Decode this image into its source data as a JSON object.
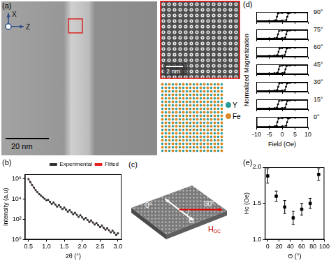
{
  "chart_data": [
    {
      "panel_label": "(b)",
      "type": "line",
      "x_label": "2θ (°)",
      "y_label": "Intensity (a.u)",
      "log": "y",
      "grid": false,
      "legend": "top",
      "xlim": [
        0.4,
        3.1
      ],
      "xticks": [
        0.5,
        {
          "value": 1,
          "label": "1.0"
        },
        1.5,
        {
          "value": 2,
          "label": "2.0"
        },
        2.5,
        {
          "value": 3,
          "label": "3.0"
        }
      ],
      "ylim": [
        1,
        3000000
      ],
      "yticks": [
        {
          "value": 1,
          "label": "10⁰"
        },
        {
          "value": 100,
          "label": "10²"
        },
        {
          "value": 10000,
          "label": "10⁴"
        },
        {
          "value": 1000000,
          "label": "10⁶"
        }
      ],
      "x": [
        0.5,
        0.55,
        0.6,
        0.65,
        0.7,
        0.75,
        0.8,
        0.85,
        0.9,
        0.95,
        1,
        1.05,
        1.1,
        1.15,
        1.2,
        1.25,
        1.3,
        1.35,
        1.4,
        1.45,
        1.5,
        1.55,
        1.6,
        1.65,
        1.7,
        1.75,
        1.8,
        1.85,
        1.9,
        1.95,
        2,
        2.05,
        2.1,
        2.15,
        2.2,
        2.25,
        2.3,
        2.35,
        2.4,
        2.45,
        2.5,
        2.55,
        2.6,
        2.65,
        2.7,
        2.75,
        2.8,
        2.85,
        2.9,
        2.95,
        3
      ],
      "series": [
        {
          "name": "Experimental",
          "color": "#333333",
          "marker": "square",
          "line_style": "solid",
          "values": [
            1000000,
            501000,
            251000,
            141000,
            79400,
            50100,
            31600,
            22400,
            15800,
            11200,
            7940,
            8700,
            5370,
            3390,
            4790,
            2990,
            1860,
            2690,
            1660,
            1050,
            1480,
            923,
            575,
            832,
            513,
            324,
            457,
            285,
            178,
            257,
            158,
            100,
            141,
            88,
            55,
            79,
            49,
            31,
            44,
            27,
            17,
            25,
            15,
            9.5,
            13.5,
            8.4,
            5.2,
            7.6,
            4.7,
            2.9,
            4.2
          ]
        },
        {
          "name": "Fitted",
          "color": "#e8211c",
          "marker": "none",
          "line_style": "solid",
          "values": [
            980000,
            520000,
            245000,
            145000,
            78000,
            51000,
            31000,
            22800,
            15500,
            11500,
            7800,
            8300,
            5500,
            3300,
            4600,
            3050,
            1800,
            2600,
            1700,
            1020,
            1430,
            950,
            560,
            800,
            525,
            315,
            440,
            290,
            172,
            248,
            162,
            97,
            136,
            90,
            54,
            76,
            50,
            30,
            42,
            27.5,
            16.5,
            24,
            15.3,
            9.2,
            13,
            8.6,
            5,
            7.3,
            4.8,
            2.8,
            4
          ]
        }
      ]
    },
    {
      "panel_label": "(d)",
      "type": "line",
      "x_label": "Field (Oe)",
      "y_label": "Normalized Magnetization",
      "grid": false,
      "tick_labels": "x",
      "xlim": [
        -10,
        10
      ],
      "xticks": [
        -10,
        -5,
        0,
        5,
        10
      ],
      "ylim": [
        -1.2,
        1.2
      ],
      "series": [
        {
          "name": "90°",
          "color": "#000000",
          "marker": "circle",
          "line_style": "solid",
          "x": [
            10,
            5,
            2,
            0,
            -1.6,
            -2,
            -2.4,
            -3,
            -5,
            -10,
            -5,
            -2,
            0,
            1.6,
            2,
            2.4,
            3,
            5,
            10
          ],
          "values": [
            1,
            1,
            0.97,
            0.93,
            0.8,
            0,
            -0.8,
            -0.95,
            -1,
            -1,
            -1,
            -0.97,
            -0.93,
            -0.8,
            0,
            0.8,
            0.95,
            1,
            1
          ]
        },
        {
          "name": "75°",
          "color": "#000000",
          "marker": "circle",
          "line_style": "solid",
          "x": [
            10,
            5,
            2,
            0,
            -1.2,
            -1.6,
            -2,
            -3,
            -5,
            -10,
            -5,
            -2,
            0,
            1.2,
            1.6,
            2,
            3,
            5,
            10
          ],
          "values": [
            1,
            1,
            0.97,
            0.93,
            0.8,
            0,
            -0.8,
            -0.95,
            -1,
            -1,
            -1,
            -0.97,
            -0.93,
            -0.8,
            0,
            0.8,
            0.95,
            1,
            1
          ]
        },
        {
          "name": "60°",
          "color": "#000000",
          "marker": "circle",
          "line_style": "solid",
          "x": [
            10,
            5,
            2,
            0,
            -1,
            -1.4,
            -1.8,
            -3,
            -5,
            -10,
            -5,
            -2,
            0,
            1,
            1.4,
            1.8,
            3,
            5,
            10
          ],
          "values": [
            1,
            1,
            0.97,
            0.93,
            0.8,
            0,
            -0.8,
            -0.95,
            -1,
            -1,
            -1,
            -0.97,
            -0.93,
            -0.8,
            0,
            0.8,
            0.95,
            1,
            1
          ]
        },
        {
          "name": "45°",
          "color": "#000000",
          "marker": "circle",
          "line_style": "solid",
          "x": [
            10,
            5,
            2,
            0,
            -0.9,
            -1.3,
            -1.7,
            -3,
            -5,
            -10,
            -5,
            -2,
            0,
            0.9,
            1.3,
            1.7,
            3,
            5,
            10
          ],
          "values": [
            1,
            1,
            0.97,
            0.93,
            0.8,
            0,
            -0.8,
            -0.95,
            -1,
            -1,
            -1,
            -0.97,
            -0.93,
            -0.8,
            0,
            0.8,
            0.95,
            1,
            1
          ]
        },
        {
          "name": "30°",
          "color": "#000000",
          "marker": "circle",
          "line_style": "solid",
          "x": [
            10,
            5,
            2,
            0,
            -1.1,
            -1.5,
            -1.9,
            -3,
            -5,
            -10,
            -5,
            -2,
            0,
            1.1,
            1.5,
            1.9,
            3,
            5,
            10
          ],
          "values": [
            1,
            1,
            0.97,
            0.93,
            0.8,
            0,
            -0.8,
            -0.95,
            -1,
            -1,
            -1,
            -0.97,
            -0.93,
            -0.8,
            0,
            0.8,
            0.95,
            1,
            1
          ]
        },
        {
          "name": "15°",
          "color": "#000000",
          "marker": "circle",
          "line_style": "solid",
          "x": [
            10,
            5,
            2,
            0,
            -1.2,
            -1.6,
            -2,
            -3,
            -5,
            -10,
            -5,
            -2,
            0,
            1.2,
            1.6,
            2,
            3,
            5,
            10
          ],
          "values": [
            1,
            1,
            0.97,
            0.93,
            0.8,
            0,
            -0.8,
            -0.95,
            -1,
            -1,
            -1,
            -0.97,
            -0.93,
            -0.8,
            0,
            0.8,
            0.95,
            1,
            1
          ]
        },
        {
          "name": "0°",
          "color": "#000000",
          "marker": "circle",
          "line_style": "solid",
          "x": [
            10,
            5,
            2,
            0,
            -1.5,
            -1.9,
            -2.3,
            -3,
            -5,
            -10,
            -5,
            -2,
            0,
            1.5,
            1.9,
            2.3,
            3,
            5,
            10
          ],
          "values": [
            1,
            1,
            0.97,
            0.93,
            0.8,
            0,
            -0.8,
            -0.95,
            -1,
            -1,
            -1,
            -0.97,
            -0.93,
            -0.8,
            0,
            0.8,
            0.95,
            1,
            1
          ]
        }
      ]
    },
    {
      "panel_label": "(e)",
      "type": "scatter",
      "x_label": "Θ (°)",
      "y_label": "Hc (Oe)",
      "grid": false,
      "xlim": [
        -5,
        100
      ],
      "xticks": [
        0,
        20,
        40,
        60,
        80,
        100
      ],
      "ylim": [
        1,
        2
      ],
      "yticks": [
        {
          "value": 1,
          "label": "1.0"
        },
        1.5,
        {
          "value": 2,
          "label": "2.0"
        }
      ],
      "x": [
        0,
        15,
        30,
        45,
        60,
        75,
        90
      ],
      "values": [
        1.88,
        1.6,
        1.45,
        1.3,
        1.42,
        1.5,
        1.9
      ],
      "errors": [
        0.1,
        0.07,
        0.09,
        0.09,
        0.08,
        0.07,
        0.08
      ],
      "color": "#000000",
      "marker": "square"
    }
  ],
  "panels": {
    "a": {
      "label": "(a)",
      "axis_x": "X",
      "axis_z": "Z",
      "scale_bar": "20 nm",
      "inset_scale_bar": "2 nm",
      "key": [
        {
          "name": "Y",
          "color": "#2a9a9a"
        },
        {
          "name": "Fe",
          "color": "#d98a2b"
        }
      ]
    },
    "c": {
      "label": "(c)",
      "angle_start": "0°",
      "angle_end": "90°",
      "angle": "Θ",
      "field": "H",
      "field_sub": "DC"
    }
  }
}
